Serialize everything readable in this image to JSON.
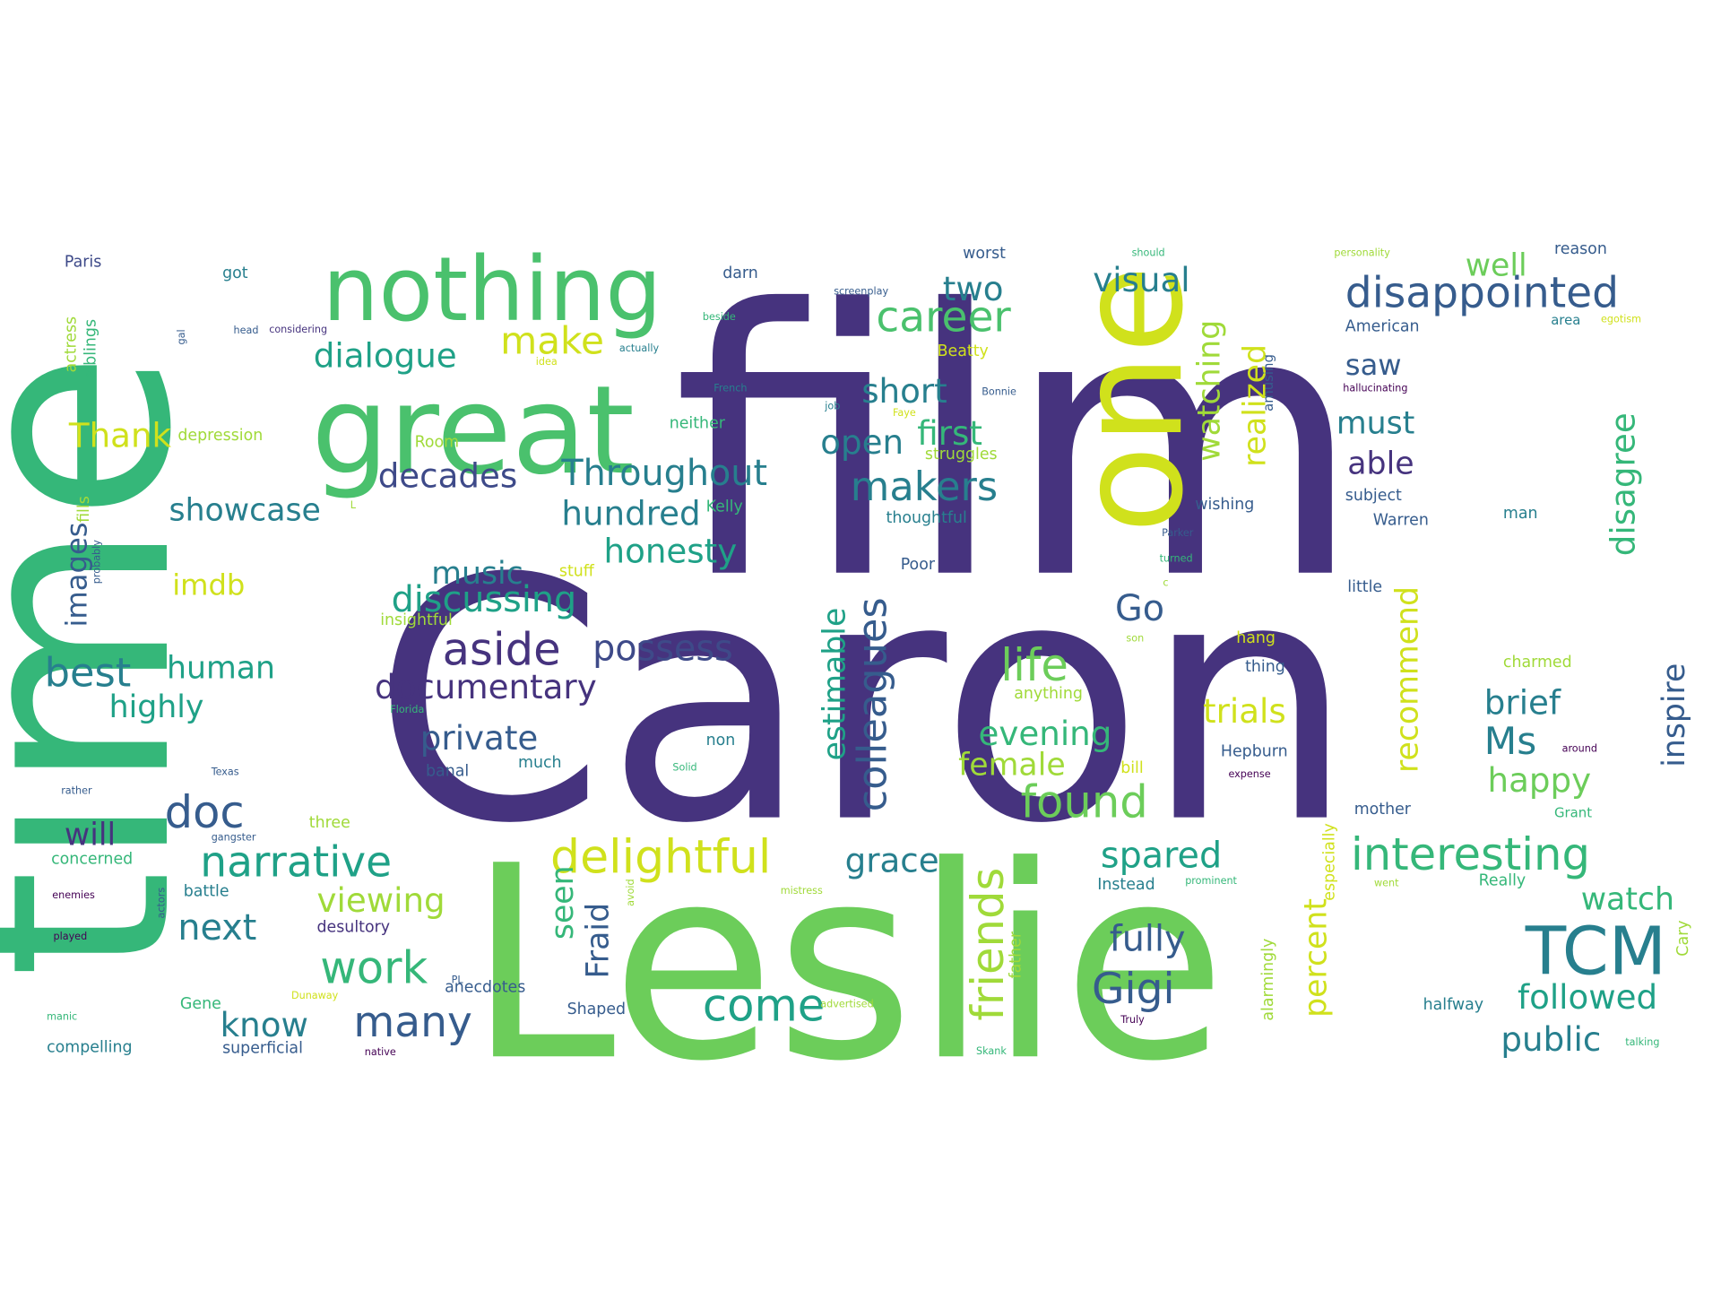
{
  "palette": {
    "purple": "#46337e",
    "dark_purple": "#440154",
    "blue": "#365c8d",
    "slate": "#3e4a89",
    "teal": "#277f8e",
    "teal_green": "#1fa187",
    "green": "#35b779",
    "light_green": "#4ac16d",
    "lime": "#6ccd5a",
    "yellow_green": "#a0da39",
    "yellow": "#d0e11c",
    "bright_yellow": "#f0e51c"
  },
  "words": [
    {
      "id": "caron",
      "text": "Caron",
      "color": "#46337e"
    },
    {
      "id": "film",
      "text": "film",
      "color": "#46337e"
    },
    {
      "id": "leslie",
      "text": "Leslie",
      "color": "#6ccd5a"
    },
    {
      "id": "time",
      "text": "time",
      "color": "#35b779"
    },
    {
      "id": "great",
      "text": "great",
      "color": "#4ac16d"
    },
    {
      "id": "nothing",
      "text": "nothing",
      "color": "#4ac16d"
    },
    {
      "id": "one",
      "text": "one",
      "color": "#d0e11c"
    },
    {
      "id": "tcm",
      "text": "TCM",
      "color": "#277f8e"
    },
    {
      "id": "disappointed",
      "text": "disappointed",
      "color": "#365c8d"
    },
    {
      "id": "interesting",
      "text": "interesting",
      "color": "#35b779"
    },
    {
      "id": "narrative",
      "text": "narrative",
      "color": "#1fa187"
    },
    {
      "id": "delightful",
      "text": "delightful",
      "color": "#d0e11c"
    },
    {
      "id": "colleagues",
      "text": "colleagues",
      "color": "#365c8d"
    },
    {
      "id": "documentary",
      "text": "documentary",
      "color": "#46337e"
    },
    {
      "id": "throughout",
      "text": "Throughout",
      "color": "#277f8e"
    },
    {
      "id": "makers",
      "text": "makers",
      "color": "#277f8e"
    },
    {
      "id": "career",
      "text": "career",
      "color": "#4ac16d"
    },
    {
      "id": "dialogue",
      "text": "dialogue",
      "color": "#1fa187"
    },
    {
      "id": "make",
      "text": "make",
      "color": "#d0e11c"
    },
    {
      "id": "aside",
      "text": "aside",
      "color": "#46337e"
    },
    {
      "id": "possess",
      "text": "possess",
      "color": "#3e4a89"
    },
    {
      "id": "discussing",
      "text": "discussing",
      "color": "#1fa187"
    },
    {
      "id": "friends",
      "text": "friends",
      "color": "#a0da39"
    },
    {
      "id": "life",
      "text": "life",
      "color": "#6ccd5a"
    },
    {
      "id": "found",
      "text": "found",
      "color": "#6ccd5a"
    },
    {
      "id": "spared",
      "text": "spared",
      "color": "#1fa187"
    },
    {
      "id": "gigi",
      "text": "Gigi",
      "color": "#365c8d"
    },
    {
      "id": "come",
      "text": "come",
      "color": "#1fa187"
    },
    {
      "id": "many",
      "text": "many",
      "color": "#365c8d"
    },
    {
      "id": "work",
      "text": "work",
      "color": "#35b779"
    },
    {
      "id": "doc",
      "text": "doc",
      "color": "#365c8d"
    },
    {
      "id": "best",
      "text": "best",
      "color": "#277f8e"
    },
    {
      "id": "images",
      "text": "images",
      "color": "#365c8d"
    },
    {
      "id": "showcase",
      "text": "showcase",
      "color": "#277f8e"
    },
    {
      "id": "decades",
      "text": "decades",
      "color": "#3e4a89"
    },
    {
      "id": "hundred",
      "text": "hundred",
      "color": "#277f8e"
    },
    {
      "id": "honesty",
      "text": "honesty",
      "color": "#1fa187"
    },
    {
      "id": "music",
      "text": "music",
      "color": "#277f8e"
    },
    {
      "id": "private",
      "text": "private",
      "color": "#365c8d"
    },
    {
      "id": "human",
      "text": "human",
      "color": "#1fa187"
    },
    {
      "id": "highly",
      "text": "highly",
      "color": "#1fa187"
    },
    {
      "id": "will",
      "text": "will",
      "color": "#46337e"
    },
    {
      "id": "next",
      "text": "next",
      "color": "#277f8e"
    },
    {
      "id": "viewing",
      "text": "viewing",
      "color": "#a0da39"
    },
    {
      "id": "know",
      "text": "know",
      "color": "#277f8e"
    },
    {
      "id": "grace",
      "text": "grace",
      "color": "#277f8e"
    },
    {
      "id": "estimable",
      "text": "estimable",
      "color": "#1fa187"
    },
    {
      "id": "fraid",
      "text": "Fraid",
      "color": "#365c8d"
    },
    {
      "id": "seen",
      "text": "seen",
      "color": "#35b779"
    },
    {
      "id": "evening",
      "text": "evening",
      "color": "#35b779"
    },
    {
      "id": "female",
      "text": "female",
      "color": "#a0da39"
    },
    {
      "id": "trials",
      "text": "trials",
      "color": "#d0e11c"
    },
    {
      "id": "recommend",
      "text": "recommend",
      "color": "#d0e11c"
    },
    {
      "id": "realized",
      "text": "realized",
      "color": "#d0e11c"
    },
    {
      "id": "watching",
      "text": "watching",
      "color": "#a0da39"
    },
    {
      "id": "first",
      "text": "first",
      "color": "#35b779"
    },
    {
      "id": "short",
      "text": "short",
      "color": "#277f8e"
    },
    {
      "id": "open",
      "text": "open",
      "color": "#277f8e"
    },
    {
      "id": "two",
      "text": "two",
      "color": "#277f8e"
    },
    {
      "id": "visual",
      "text": "visual",
      "color": "#277f8e"
    },
    {
      "id": "well",
      "text": "well",
      "color": "#6ccd5a"
    },
    {
      "id": "saw",
      "text": "saw",
      "color": "#365c8d"
    },
    {
      "id": "must",
      "text": "must",
      "color": "#277f8e"
    },
    {
      "id": "able",
      "text": "able",
      "color": "#46337e"
    },
    {
      "id": "disagree",
      "text": "disagree",
      "color": "#35b779"
    },
    {
      "id": "inspire",
      "text": "inspire",
      "color": "#365c8d"
    },
    {
      "id": "brief",
      "text": "brief",
      "color": "#277f8e"
    },
    {
      "id": "ms",
      "text": "Ms",
      "color": "#277f8e"
    },
    {
      "id": "happy",
      "text": "happy",
      "color": "#6ccd5a"
    },
    {
      "id": "watch",
      "text": "watch",
      "color": "#35b779"
    },
    {
      "id": "fully",
      "text": "fully",
      "color": "#365c8d"
    },
    {
      "id": "percent",
      "text": "percent",
      "color": "#d0e11c"
    },
    {
      "id": "followed",
      "text": "followed",
      "color": "#1fa187"
    },
    {
      "id": "public",
      "text": "public",
      "color": "#277f8e"
    },
    {
      "id": "go",
      "text": "Go",
      "color": "#365c8d"
    },
    {
      "id": "thank",
      "text": "Thank",
      "color": "#d0e11c"
    },
    {
      "id": "imdb",
      "text": "imdb",
      "color": "#d0e11c"
    },
    {
      "id": "paris",
      "text": "Paris",
      "color": "#3e4a89"
    },
    {
      "id": "got",
      "text": "got",
      "color": "#277f8e"
    },
    {
      "id": "darn",
      "text": "darn",
      "color": "#365c8d"
    },
    {
      "id": "worst",
      "text": "worst",
      "color": "#365c8d"
    },
    {
      "id": "should",
      "text": "should",
      "color": "#35b779"
    },
    {
      "id": "personality",
      "text": "personality",
      "color": "#a0da39"
    },
    {
      "id": "reason",
      "text": "reason",
      "color": "#365c8d"
    },
    {
      "id": "american",
      "text": "American",
      "color": "#365c8d"
    },
    {
      "id": "area",
      "text": "area",
      "color": "#277f8e"
    },
    {
      "id": "egotism",
      "text": "egotism",
      "color": "#d0e11c"
    },
    {
      "id": "beatty",
      "text": "Beatty",
      "color": "#d0e11c"
    },
    {
      "id": "actress",
      "text": "actress",
      "color": "#a0da39"
    },
    {
      "id": "siblings",
      "text": "siblings",
      "color": "#35b779"
    },
    {
      "id": "depression",
      "text": "depression",
      "color": "#a0da39"
    },
    {
      "id": "room",
      "text": "Room",
      "color": "#a0da39"
    },
    {
      "id": "neither",
      "text": "neither",
      "color": "#35b779"
    },
    {
      "id": "struggles",
      "text": "struggles",
      "color": "#a0da39"
    },
    {
      "id": "french",
      "text": "French",
      "color": "#277f8e"
    },
    {
      "id": "bonnie",
      "text": "Bonnie",
      "color": "#365c8d"
    },
    {
      "id": "hallucinating",
      "text": "hallucinating",
      "color": "#440154"
    },
    {
      "id": "amusing",
      "text": "amusing",
      "color": "#365c8d"
    },
    {
      "id": "subject",
      "text": "subject",
      "color": "#365c8d"
    },
    {
      "id": "warren",
      "text": "Warren",
      "color": "#365c8d"
    },
    {
      "id": "man",
      "text": "man",
      "color": "#277f8e"
    },
    {
      "id": "wishing",
      "text": "wishing",
      "color": "#365c8d"
    },
    {
      "id": "kelly",
      "text": "Kelly",
      "color": "#35b779"
    },
    {
      "id": "thoughtful",
      "text": "thoughtful",
      "color": "#277f8e"
    },
    {
      "id": "poor",
      "text": "Poor",
      "color": "#365c8d"
    },
    {
      "id": "stuff",
      "text": "stuff",
      "color": "#d0e11c"
    },
    {
      "id": "insightful",
      "text": "insightful",
      "color": "#a0da39"
    },
    {
      "id": "little",
      "text": "little",
      "color": "#365c8d"
    },
    {
      "id": "hang",
      "text": "hang",
      "color": "#d0e11c"
    },
    {
      "id": "thing",
      "text": "thing",
      "color": "#365c8d"
    },
    {
      "id": "anything",
      "text": "anything",
      "color": "#a0da39"
    },
    {
      "id": "charmed",
      "text": "charmed",
      "color": "#a0da39"
    },
    {
      "id": "hepburn",
      "text": "Hepburn",
      "color": "#365c8d"
    },
    {
      "id": "expense",
      "text": "expense",
      "color": "#440154"
    },
    {
      "id": "around",
      "text": "around",
      "color": "#440154"
    },
    {
      "id": "bill",
      "text": "bill",
      "color": "#d0e11c"
    },
    {
      "id": "non",
      "text": "non",
      "color": "#277f8e"
    },
    {
      "id": "much",
      "text": "much",
      "color": "#277f8e"
    },
    {
      "id": "banal",
      "text": "banal",
      "color": "#365c8d"
    },
    {
      "id": "solid",
      "text": "Solid",
      "color": "#35b779"
    },
    {
      "id": "texas",
      "text": "Texas",
      "color": "#365c8d"
    },
    {
      "id": "florida",
      "text": "Florida",
      "color": "#35b779"
    },
    {
      "id": "rather",
      "text": "rather",
      "color": "#365c8d"
    },
    {
      "id": "gangster",
      "text": "gangster",
      "color": "#365c8d"
    },
    {
      "id": "three",
      "text": "three",
      "color": "#a0da39"
    },
    {
      "id": "mother",
      "text": "mother",
      "color": "#365c8d"
    },
    {
      "id": "grant",
      "text": "Grant",
      "color": "#35b779"
    },
    {
      "id": "concerned",
      "text": "concerned",
      "color": "#35b779"
    },
    {
      "id": "battle",
      "text": "battle",
      "color": "#277f8e"
    },
    {
      "id": "actors",
      "text": "actors",
      "color": "#365c8d"
    },
    {
      "id": "enemies",
      "text": "enemies",
      "color": "#440154"
    },
    {
      "id": "played",
      "text": "played",
      "color": "#440154"
    },
    {
      "id": "desultory",
      "text": "desultory",
      "color": "#46337e"
    },
    {
      "id": "instead",
      "text": "Instead",
      "color": "#277f8e"
    },
    {
      "id": "really",
      "text": "Really",
      "color": "#35b779"
    },
    {
      "id": "cary",
      "text": "Cary",
      "color": "#a0da39"
    },
    {
      "id": "especially",
      "text": "especially",
      "color": "#d0e11c"
    },
    {
      "id": "alarmingly",
      "text": "alarmingly",
      "color": "#a0da39"
    },
    {
      "id": "father",
      "text": "father",
      "color": "#a0da39"
    },
    {
      "id": "anecdotes",
      "text": "anecdotes",
      "color": "#365c8d"
    },
    {
      "id": "shaped",
      "text": "Shaped",
      "color": "#365c8d"
    },
    {
      "id": "gene",
      "text": "Gene",
      "color": "#35b779"
    },
    {
      "id": "dunaway",
      "text": "Dunaway",
      "color": "#d0e11c"
    },
    {
      "id": "manic",
      "text": "manic",
      "color": "#35b779"
    },
    {
      "id": "compelling",
      "text": "compelling",
      "color": "#277f8e"
    },
    {
      "id": "superficial",
      "text": "superficial",
      "color": "#365c8d"
    },
    {
      "id": "native",
      "text": "native",
      "color": "#440154"
    },
    {
      "id": "halfway",
      "text": "halfway",
      "color": "#277f8e"
    },
    {
      "id": "talking",
      "text": "talking",
      "color": "#35b779"
    },
    {
      "id": "truly",
      "text": "Truly",
      "color": "#440154"
    },
    {
      "id": "skank",
      "text": "Skank",
      "color": "#35b779"
    },
    {
      "id": "advertised",
      "text": "advertised",
      "color": "#a0da39"
    },
    {
      "id": "mistress",
      "text": "mistress",
      "color": "#a0da39"
    },
    {
      "id": "screenplay",
      "text": "screenplay",
      "color": "#365c8d"
    },
    {
      "id": "beside",
      "text": "beside",
      "color": "#35b779"
    },
    {
      "id": "considering",
      "text": "considering",
      "color": "#46337e"
    },
    {
      "id": "head",
      "text": "head",
      "color": "#365c8d"
    },
    {
      "id": "gal",
      "text": "gal",
      "color": "#365c8d"
    },
    {
      "id": "actually",
      "text": "actually",
      "color": "#277f8e"
    },
    {
      "id": "idea",
      "text": "idea",
      "color": "#d0e11c"
    },
    {
      "id": "job",
      "text": "job",
      "color": "#277f8e"
    },
    {
      "id": "faye",
      "text": "Faye",
      "color": "#d0e11c"
    },
    {
      "id": "parker",
      "text": "Parker",
      "color": "#365c8d"
    },
    {
      "id": "turned",
      "text": "turned",
      "color": "#35b779"
    },
    {
      "id": "fills",
      "text": "fills",
      "color": "#a0da39"
    },
    {
      "id": "probably",
      "text": "probably",
      "color": "#365c8d"
    },
    {
      "id": "pl",
      "text": "PL",
      "color": "#365c8d"
    },
    {
      "id": "prominent",
      "text": "prominent",
      "color": "#35b779"
    },
    {
      "id": "c",
      "text": "c",
      "color": "#a0da39"
    },
    {
      "id": "l",
      "text": "L",
      "color": "#a0da39"
    },
    {
      "id": "son",
      "text": "son",
      "color": "#a0da39"
    },
    {
      "id": "went",
      "text": "went",
      "color": "#a0da39"
    },
    {
      "id": "avoid",
      "text": "avoid",
      "color": "#a0da39"
    }
  ]
}
